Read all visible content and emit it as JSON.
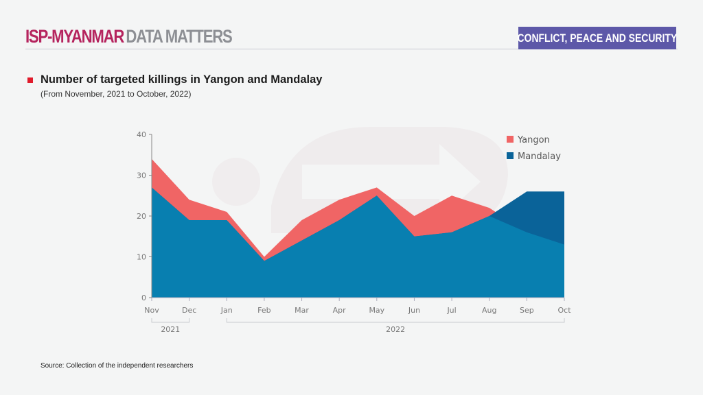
{
  "header": {
    "brand_primary": "ISP-MYANMAR",
    "brand_secondary": "DATA MATTERS",
    "category_tag": "CONFLICT, PEACE AND SECURITY"
  },
  "colors": {
    "brand": "#b5245e",
    "tag_bg": "#5d58a8",
    "yangon": "#f06565",
    "mandalay": "#0a6399",
    "overlap": "#087fb0"
  },
  "footer": {
    "source": "Source: Collection of the independent researchers"
  },
  "chart_data": {
    "type": "area",
    "title": "Number of targeted killings in Yangon and Mandalay",
    "subtitle": "(From November, 2021 to October, 2022)",
    "categories": [
      "Nov",
      "Dec",
      "Jan",
      "Feb",
      "Mar",
      "Apr",
      "May",
      "Jun",
      "Jul",
      "Aug",
      "Sep",
      "Oct"
    ],
    "year_groups": [
      {
        "label": "2021",
        "from": "Nov",
        "to": "Dec"
      },
      {
        "label": "2022",
        "from": "Jan",
        "to": "Oct"
      }
    ],
    "series": [
      {
        "name": "Yangon",
        "values": [
          34,
          24,
          21,
          10,
          19,
          24,
          27,
          20,
          25,
          22,
          16,
          13
        ]
      },
      {
        "name": "Mandalay",
        "values": [
          27,
          19,
          19,
          9,
          14,
          19,
          25,
          15,
          16,
          20,
          26,
          26
        ]
      }
    ],
    "yticks": [
      0,
      10,
      20,
      30,
      40
    ],
    "ylim": [
      0,
      40
    ],
    "xlabel": "",
    "ylabel": "",
    "legend": "top-right",
    "grid": false
  }
}
